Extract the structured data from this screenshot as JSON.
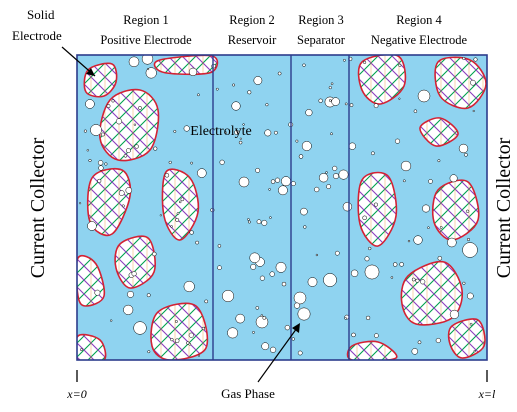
{
  "colors": {
    "electrolyte": "#8fd3f0",
    "boundary": "#2c3c8c",
    "particle_outline": "#d32234",
    "hatch_colors": [
      "#00a24f",
      "#8b3dbe",
      "#ee8a1e",
      "#2e6bd8",
      "#d32234"
    ],
    "bubble_fill": "#ffffff",
    "bubble_stroke": "#000000"
  },
  "regions": [
    {
      "id": "region-1",
      "title": "Region 1",
      "subtitle": "Positive Electrode"
    },
    {
      "id": "region-2",
      "title": "Region 2",
      "subtitle": "Reservoir"
    },
    {
      "id": "region-3",
      "title": "Region 3",
      "subtitle": "Separator"
    },
    {
      "id": "region-4",
      "title": "Region 4",
      "subtitle": "Negative Electrode"
    }
  ],
  "labels": {
    "solid_electrode_line1": "Solid",
    "solid_electrode_line2": "Electrode",
    "electrolyte": "Electrolyte",
    "gas_phase": "Gas Phase",
    "left_collector": "Current Collector",
    "right_collector": "Current Collector",
    "x_start": "x=0",
    "x_end": "x=l"
  }
}
